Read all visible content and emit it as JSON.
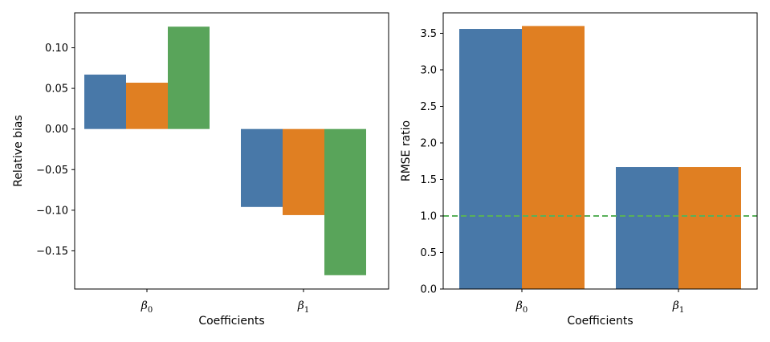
{
  "chart_data": [
    {
      "type": "bar",
      "categories": [
        "β0",
        "β1"
      ],
      "category_labels": [
        {
          "main": "β",
          "sub": "0"
        },
        {
          "main": "β",
          "sub": "1"
        }
      ],
      "series": [
        {
          "name": "series-1",
          "color": "#4878a8",
          "values": [
            0.067,
            -0.096
          ]
        },
        {
          "name": "series-2",
          "color": "#e07f22",
          "values": [
            0.057,
            -0.106
          ]
        },
        {
          "name": "series-3",
          "color": "#59a45a",
          "values": [
            0.126,
            -0.18
          ]
        }
      ],
      "title": "",
      "xlabel": "Coefficients",
      "ylabel": "Relative bias",
      "ylim": [
        -0.197,
        0.143
      ],
      "yticks": [
        0.1,
        0.05,
        0.0,
        -0.05,
        -0.1,
        -0.15
      ],
      "ytick_labels": [
        "0.10",
        "0.05",
        "0.00",
        "−0.05",
        "−0.10",
        "−0.15"
      ],
      "grid": false,
      "legend": "none"
    },
    {
      "type": "bar",
      "categories": [
        "β0",
        "β1"
      ],
      "category_labels": [
        {
          "main": "β",
          "sub": "0"
        },
        {
          "main": "β",
          "sub": "1"
        }
      ],
      "series": [
        {
          "name": "series-1",
          "color": "#4878a8",
          "values": [
            3.56,
            1.67
          ]
        },
        {
          "name": "series-2",
          "color": "#e07f22",
          "values": [
            3.6,
            1.67
          ]
        }
      ],
      "reference_line": {
        "y": 1.0,
        "color": "#59b05a",
        "style": "dashed"
      },
      "title": "",
      "xlabel": "Coefficients",
      "ylabel": "RMSE ratio",
      "ylim": [
        0.0,
        3.78
      ],
      "yticks": [
        0.0,
        0.5,
        1.0,
        1.5,
        2.0,
        2.5,
        3.0,
        3.5
      ],
      "ytick_labels": [
        "0.0",
        "0.5",
        "1.0",
        "1.5",
        "2.0",
        "2.5",
        "3.0",
        "3.5"
      ],
      "grid": false,
      "legend": "none"
    }
  ]
}
